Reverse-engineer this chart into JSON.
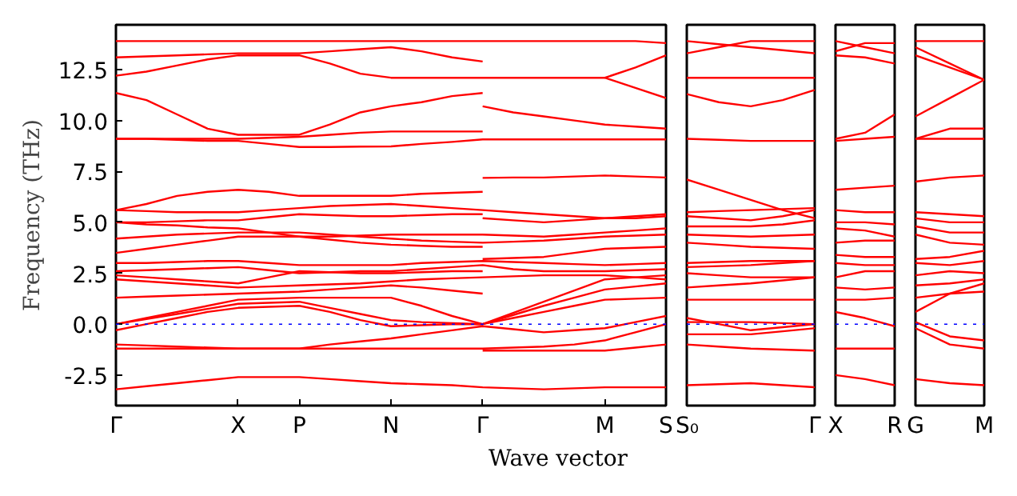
{
  "chart_data": [
    {
      "type": "line",
      "ylabel": "Frequency (THz)",
      "xlabel": "Wave vector",
      "ylim": [
        -4.0,
        14.7
      ],
      "categories": [
        "Γ",
        null,
        null,
        null,
        "X",
        null,
        "P",
        null,
        null,
        "N",
        null,
        null,
        "Γ",
        null,
        null,
        null,
        "M",
        null,
        "S"
      ],
      "yticks": [
        {
          "value": -2.5,
          "label": "-2.5"
        },
        {
          "value": 0,
          "label": "0.0"
        },
        {
          "value": 2.5,
          "label": "2.5"
        },
        {
          "value": 5,
          "label": "5.0"
        },
        {
          "value": 7.5,
          "label": "7.5"
        },
        {
          "value": 10,
          "label": "10.0"
        },
        {
          "value": 12.5,
          "label": "12.5"
        }
      ],
      "ref_lines": [
        {
          "axis": "y",
          "value": 0,
          "color": "#0000ff",
          "line_style": "dotted"
        }
      ],
      "series": [
        {
          "color": "#ff0000",
          "values": [
            13.9,
            13.9,
            13.9,
            13.9,
            13.9,
            13.9,
            13.9,
            13.9,
            13.9,
            13.9,
            13.9,
            13.9,
            13.9,
            13.9,
            13.9,
            13.9,
            13.9,
            13.9,
            13.8
          ]
        },
        {
          "color": "#ff0000",
          "values": [
            13.1,
            13.15,
            13.2,
            13.25,
            13.3,
            13.3,
            13.3,
            13.4,
            13.5,
            13.6,
            13.4,
            13.1,
            12.9,
            null,
            null,
            null,
            null,
            null,
            null
          ]
        },
        {
          "color": "#ff0000",
          "values": [
            12.2,
            12.4,
            12.7,
            13.0,
            13.2,
            13.2,
            13.2,
            12.8,
            12.3,
            12.1,
            12.1,
            12.1,
            12.1,
            12.1,
            12.1,
            12.1,
            12.1,
            12.6,
            13.2
          ]
        },
        {
          "color": "#ff0000",
          "values": [
            null,
            null,
            null,
            null,
            null,
            null,
            null,
            null,
            null,
            null,
            null,
            null,
            null,
            null,
            null,
            null,
            12.1,
            11.6,
            11.1
          ]
        },
        {
          "color": "#ff0000",
          "values": [
            11.35,
            11.0,
            10.3,
            9.6,
            9.3,
            9.3,
            9.3,
            9.8,
            10.4,
            10.7,
            10.9,
            11.2,
            11.35,
            null,
            null,
            null,
            null,
            null,
            null
          ]
        },
        {
          "color": "#ff0000",
          "values": [
            null,
            null,
            null,
            null,
            null,
            null,
            null,
            null,
            null,
            null,
            null,
            null,
            10.7,
            10.4,
            10.2,
            10.0,
            9.8,
            9.7,
            9.6
          ]
        },
        {
          "color": "#ff0000",
          "values": [
            9.1,
            9.1,
            9.1,
            9.1,
            9.1,
            9.15,
            9.2,
            9.3,
            9.4,
            9.46,
            9.46,
            9.46,
            9.46,
            null,
            null,
            null,
            null,
            null,
            null
          ]
        },
        {
          "color": "#ff0000",
          "values": [
            9.1,
            9.1,
            9.05,
            9.0,
            9.0,
            8.85,
            8.7,
            8.7,
            8.72,
            8.73,
            8.85,
            8.95,
            9.07,
            9.07,
            9.07,
            9.07,
            9.07,
            9.07,
            9.07
          ]
        },
        {
          "color": "#ff0000",
          "values": [
            5.6,
            5.9,
            6.3,
            6.5,
            6.6,
            6.5,
            6.3,
            6.3,
            6.3,
            6.3,
            6.4,
            6.45,
            6.5,
            null,
            null,
            null,
            null,
            null,
            null
          ]
        },
        {
          "color": "#ff0000",
          "values": [
            null,
            null,
            null,
            null,
            null,
            null,
            null,
            null,
            null,
            null,
            null,
            null,
            7.18,
            7.2,
            7.2,
            7.25,
            7.3,
            7.25,
            7.2
          ]
        },
        {
          "color": "#ff0000",
          "values": [
            5.6,
            5.55,
            5.5,
            5.5,
            5.5,
            5.6,
            5.7,
            5.8,
            5.85,
            5.9,
            5.8,
            5.7,
            5.6,
            5.5,
            5.4,
            5.3,
            5.2,
            5.2,
            5.3
          ]
        },
        {
          "color": "#ff0000",
          "values": [
            5.0,
            5.0,
            5.05,
            5.1,
            5.1,
            5.25,
            5.4,
            5.35,
            5.3,
            5.3,
            5.35,
            5.4,
            5.4,
            null,
            null,
            null,
            null,
            null,
            null
          ]
        },
        {
          "color": "#ff0000",
          "values": [
            null,
            null,
            null,
            null,
            null,
            null,
            null,
            null,
            null,
            null,
            null,
            null,
            5.2,
            5.1,
            5.0,
            5.1,
            5.2,
            5.3,
            5.4
          ]
        },
        {
          "color": "#ff0000",
          "values": [
            5.0,
            4.9,
            4.85,
            4.75,
            4.7,
            4.5,
            4.3,
            4.3,
            4.35,
            4.4,
            4.4,
            4.4,
            4.4,
            4.35,
            4.3,
            4.4,
            4.5,
            4.6,
            4.7
          ]
        },
        {
          "color": "#ff0000",
          "values": [
            4.2,
            4.3,
            4.4,
            4.45,
            4.5,
            4.5,
            4.5,
            4.4,
            4.3,
            4.2,
            4.1,
            4.05,
            4.0,
            4.05,
            4.1,
            4.2,
            4.3,
            4.35,
            4.4
          ]
        },
        {
          "color": "#ff0000",
          "values": [
            3.5,
            3.7,
            3.9,
            4.1,
            4.3,
            4.3,
            4.3,
            4.15,
            4.0,
            3.9,
            3.85,
            3.8,
            3.8,
            null,
            null,
            null,
            null,
            null,
            null
          ]
        },
        {
          "color": "#ff0000",
          "values": [
            null,
            null,
            null,
            null,
            null,
            null,
            null,
            null,
            null,
            null,
            null,
            null,
            3.2,
            3.25,
            3.3,
            3.5,
            3.7,
            3.75,
            3.8
          ]
        },
        {
          "color": "#ff0000",
          "values": [
            3.0,
            3.0,
            3.05,
            3.1,
            3.1,
            3.0,
            2.9,
            2.9,
            2.9,
            2.9,
            3.0,
            3.05,
            3.1,
            3.05,
            3.0,
            2.95,
            2.9,
            2.95,
            3.0
          ]
        },
        {
          "color": "#ff0000",
          "values": [
            2.6,
            2.65,
            2.7,
            2.75,
            2.8,
            2.65,
            2.5,
            2.55,
            2.6,
            2.6,
            2.7,
            2.8,
            2.9,
            2.7,
            2.6,
            2.6,
            2.6,
            2.65,
            2.7
          ]
        },
        {
          "color": "#ff0000",
          "values": [
            2.4,
            2.3,
            2.2,
            2.1,
            2.0,
            2.3,
            2.6,
            2.55,
            2.5,
            2.5,
            2.55,
            2.6,
            2.6,
            null,
            null,
            null,
            null,
            null,
            null
          ]
        },
        {
          "color": "#ff0000",
          "values": [
            2.2,
            2.1,
            2.0,
            1.9,
            1.8,
            1.85,
            1.9,
            1.95,
            2.0,
            2.1,
            2.2,
            2.25,
            2.3,
            2.35,
            2.4,
            2.4,
            2.4,
            2.3,
            2.2
          ]
        },
        {
          "color": "#ff0000",
          "values": [
            1.3,
            1.35,
            1.4,
            1.45,
            1.5,
            1.55,
            1.6,
            1.7,
            1.8,
            1.9,
            1.8,
            1.65,
            1.5,
            null,
            null,
            null,
            null,
            null,
            null
          ]
        },
        {
          "color": "#ff0000",
          "values": [
            0.0,
            0.3,
            0.6,
            0.9,
            1.2,
            1.25,
            1.3,
            1.3,
            1.3,
            1.3,
            0.9,
            0.4,
            0.0,
            0.55,
            1.1,
            1.65,
            2.2,
            2.3,
            2.4
          ]
        },
        {
          "color": "#ff0000",
          "values": [
            0.0,
            0.25,
            0.5,
            0.75,
            1.0,
            1.05,
            1.1,
            0.8,
            0.5,
            0.2,
            0.1,
            0.05,
            0.0,
            0.45,
            0.9,
            1.3,
            1.7,
            1.85,
            2.0
          ]
        },
        {
          "color": "#ff0000",
          "values": [
            -0.3,
            0.0,
            0.3,
            0.6,
            0.8,
            0.85,
            0.9,
            0.6,
            0.2,
            -0.1,
            -0.05,
            0.0,
            0.0,
            0.3,
            0.6,
            0.9,
            1.2,
            1.25,
            1.3
          ]
        },
        {
          "color": "#ff0000",
          "values": [
            -1.0,
            -1.05,
            -1.1,
            -1.15,
            -1.2,
            -1.2,
            -1.2,
            -1.0,
            -0.85,
            -0.7,
            -0.5,
            -0.3,
            -0.1,
            -0.25,
            -0.4,
            -0.3,
            -0.2,
            0.1,
            0.4
          ]
        },
        {
          "color": "#ff0000",
          "values": [
            -1.2,
            -1.2,
            -1.2,
            -1.2,
            -1.2,
            -1.2,
            -1.2,
            -1.2,
            -1.2,
            -1.2,
            -1.2,
            -1.2,
            -1.2,
            -1.15,
            -1.1,
            -1.0,
            -0.8,
            -0.4,
            0.0
          ]
        },
        {
          "color": "#ff0000",
          "values": [
            null,
            null,
            null,
            null,
            null,
            null,
            null,
            null,
            null,
            null,
            null,
            null,
            -1.3,
            -1.3,
            -1.3,
            -1.3,
            -1.3,
            -1.15,
            -1.0
          ]
        },
        {
          "color": "#ff0000",
          "values": [
            -3.2,
            -3.05,
            -2.9,
            -2.75,
            -2.6,
            -2.6,
            -2.6,
            -2.7,
            -2.8,
            -2.9,
            -2.95,
            -3.0,
            -3.1,
            -3.15,
            -3.2,
            -3.15,
            -3.1,
            -3.1,
            -3.1
          ]
        }
      ]
    },
    {
      "type": "line",
      "ylim": [
        -4.0,
        14.7
      ],
      "tick_labels": "x",
      "categories": [
        "S₀",
        null,
        null,
        null,
        "Γ"
      ],
      "ref_lines": [
        {
          "axis": "y",
          "value": 0,
          "color": "#0000ff",
          "line_style": "dotted"
        }
      ],
      "series": [
        {
          "color": "#ff0000",
          "values": [
            13.3,
            13.6,
            13.9,
            13.9,
            13.9
          ]
        },
        {
          "color": "#ff0000",
          "values": [
            13.9,
            13.75,
            13.6,
            13.45,
            13.3
          ]
        },
        {
          "color": "#ff0000",
          "values": [
            12.1,
            12.1,
            12.1,
            12.1,
            12.1
          ]
        },
        {
          "color": "#ff0000",
          "values": [
            11.3,
            10.9,
            10.7,
            11.0,
            11.5
          ]
        },
        {
          "color": "#ff0000",
          "values": [
            9.1,
            9.05,
            9.0,
            9.0,
            9.0
          ]
        },
        {
          "color": "#ff0000",
          "values": [
            7.1,
            6.6,
            6.1,
            5.6,
            5.2
          ]
        },
        {
          "color": "#ff0000",
          "values": [
            5.5,
            5.55,
            5.6,
            5.65,
            5.7
          ]
        },
        {
          "color": "#ff0000",
          "values": [
            5.3,
            5.2,
            5.1,
            5.3,
            5.6
          ]
        },
        {
          "color": "#ff0000",
          "values": [
            4.8,
            4.8,
            4.8,
            4.9,
            5.1
          ]
        },
        {
          "color": "#ff0000",
          "values": [
            4.4,
            4.35,
            4.3,
            4.35,
            4.4
          ]
        },
        {
          "color": "#ff0000",
          "values": [
            4.0,
            3.9,
            3.8,
            3.75,
            3.7
          ]
        },
        {
          "color": "#ff0000",
          "values": [
            3.0,
            3.05,
            3.1,
            3.1,
            3.1
          ]
        },
        {
          "color": "#ff0000",
          "values": [
            2.8,
            2.85,
            2.9,
            3.0,
            3.1
          ]
        },
        {
          "color": "#ff0000",
          "values": [
            2.5,
            2.4,
            2.3,
            2.3,
            2.3
          ]
        },
        {
          "color": "#ff0000",
          "values": [
            1.8,
            1.9,
            2.0,
            2.15,
            2.3
          ]
        },
        {
          "color": "#ff0000",
          "values": [
            1.2,
            1.2,
            1.2,
            1.2,
            1.2
          ]
        },
        {
          "color": "#ff0000",
          "values": [
            0.3,
            0.0,
            -0.3,
            -0.15,
            0.0
          ]
        },
        {
          "color": "#ff0000",
          "values": [
            0.1,
            0.1,
            0.1,
            0.05,
            0.0
          ]
        },
        {
          "color": "#ff0000",
          "values": [
            -0.5,
            -0.5,
            -0.5,
            -0.35,
            -0.2
          ]
        },
        {
          "color": "#ff0000",
          "values": [
            -1.0,
            -1.1,
            -1.2,
            -1.25,
            -1.3
          ]
        },
        {
          "color": "#ff0000",
          "values": [
            -3.0,
            -2.95,
            -2.9,
            -3.0,
            -3.1
          ]
        }
      ]
    },
    {
      "type": "line",
      "ylim": [
        -4.0,
        14.7
      ],
      "tick_labels": "x",
      "categories": [
        "X",
        null,
        "R"
      ],
      "ref_lines": [
        {
          "axis": "y",
          "value": 0,
          "color": "#0000ff",
          "line_style": "dotted"
        }
      ],
      "series": [
        {
          "color": "#ff0000",
          "values": [
            13.9,
            13.6,
            13.3
          ]
        },
        {
          "color": "#ff0000",
          "values": [
            13.4,
            13.8,
            13.8
          ]
        },
        {
          "color": "#ff0000",
          "values": [
            13.2,
            13.1,
            12.8
          ]
        },
        {
          "color": "#ff0000",
          "values": [
            9.1,
            9.4,
            10.3
          ]
        },
        {
          "color": "#ff0000",
          "values": [
            9.0,
            9.1,
            9.2
          ]
        },
        {
          "color": "#ff0000",
          "values": [
            6.6,
            6.7,
            6.8
          ]
        },
        {
          "color": "#ff0000",
          "values": [
            5.6,
            5.5,
            5.5
          ]
        },
        {
          "color": "#ff0000",
          "values": [
            5.0,
            5.0,
            4.9
          ]
        },
        {
          "color": "#ff0000",
          "values": [
            4.7,
            4.6,
            4.3
          ]
        },
        {
          "color": "#ff0000",
          "values": [
            4.0,
            4.1,
            4.1
          ]
        },
        {
          "color": "#ff0000",
          "values": [
            3.4,
            3.3,
            3.3
          ]
        },
        {
          "color": "#ff0000",
          "values": [
            3.0,
            2.9,
            2.9
          ]
        },
        {
          "color": "#ff0000",
          "values": [
            2.3,
            2.6,
            2.6
          ]
        },
        {
          "color": "#ff0000",
          "values": [
            1.8,
            1.7,
            1.8
          ]
        },
        {
          "color": "#ff0000",
          "values": [
            1.2,
            1.2,
            1.3
          ]
        },
        {
          "color": "#ff0000",
          "values": [
            0.6,
            0.3,
            -0.1
          ]
        },
        {
          "color": "#ff0000",
          "values": [
            -1.2,
            -1.2,
            -1.2
          ]
        },
        {
          "color": "#ff0000",
          "values": [
            -2.5,
            -2.7,
            -3.0
          ]
        }
      ]
    },
    {
      "type": "line",
      "ylim": [
        -4.0,
        14.7
      ],
      "tick_labels": "x",
      "categories": [
        "G",
        null,
        "M"
      ],
      "ref_lines": [
        {
          "axis": "y",
          "value": 0,
          "color": "#0000ff",
          "line_style": "dotted"
        }
      ],
      "series": [
        {
          "color": "#ff0000",
          "values": [
            13.9,
            13.9,
            13.9
          ]
        },
        {
          "color": "#ff0000",
          "values": [
            13.6,
            12.8,
            12.0
          ]
        },
        {
          "color": "#ff0000",
          "values": [
            13.2,
            12.6,
            12.0
          ]
        },
        {
          "color": "#ff0000",
          "values": [
            10.2,
            11.1,
            12.0
          ]
        },
        {
          "color": "#ff0000",
          "values": [
            9.1,
            9.6,
            9.6
          ]
        },
        {
          "color": "#ff0000",
          "values": [
            9.1,
            9.1,
            9.1
          ]
        },
        {
          "color": "#ff0000",
          "values": [
            7.0,
            7.2,
            7.3
          ]
        },
        {
          "color": "#ff0000",
          "values": [
            5.5,
            5.4,
            5.3
          ]
        },
        {
          "color": "#ff0000",
          "values": [
            5.2,
            5.0,
            5.0
          ]
        },
        {
          "color": "#ff0000",
          "values": [
            4.8,
            4.5,
            4.5
          ]
        },
        {
          "color": "#ff0000",
          "values": [
            4.4,
            4.0,
            3.9
          ]
        },
        {
          "color": "#ff0000",
          "values": [
            3.2,
            3.3,
            3.6
          ]
        },
        {
          "color": "#ff0000",
          "values": [
            3.0,
            2.9,
            3.1
          ]
        },
        {
          "color": "#ff0000",
          "values": [
            2.4,
            2.6,
            2.5
          ]
        },
        {
          "color": "#ff0000",
          "values": [
            1.9,
            2.0,
            2.2
          ]
        },
        {
          "color": "#ff0000",
          "values": [
            1.3,
            1.5,
            1.6
          ]
        },
        {
          "color": "#ff0000",
          "values": [
            0.6,
            1.5,
            2.0
          ]
        },
        {
          "color": "#ff0000",
          "values": [
            0.1,
            -0.6,
            -0.8
          ]
        },
        {
          "color": "#ff0000",
          "values": [
            -0.2,
            -1.0,
            -1.2
          ]
        },
        {
          "color": "#ff0000",
          "values": [
            -2.7,
            -2.9,
            -3.0
          ]
        }
      ]
    }
  ]
}
